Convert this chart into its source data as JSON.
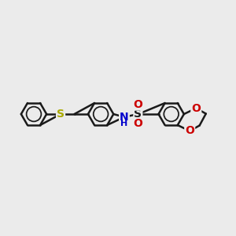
{
  "bg_color": "#ebebeb",
  "bond_color": "#1a1a1a",
  "S_color": "#aaaa00",
  "N_color": "#0000cc",
  "O_color": "#cc0000",
  "bond_width": 1.8,
  "fig_size": [
    3.0,
    3.0
  ],
  "dpi": 100,
  "xlim": [
    0,
    12
  ],
  "ylim": [
    0,
    10
  ]
}
